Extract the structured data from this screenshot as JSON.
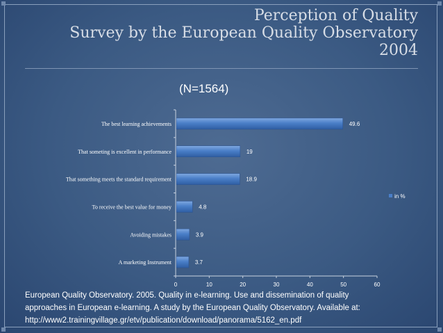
{
  "slide": {
    "title_lines": [
      "Perception of Quality",
      "Survey by the European Quality Observatory",
      "2004"
    ],
    "sample_size": "(N=1564)",
    "citation_lines": [
      "European Quality Observatory. 2005. Quality in e-learning. Use and dissemination of quality",
      "approaches in European e-learning. A study by the European Quality Observatory. Available at:",
      "http://www2.trainingvillage.gr/etv/publication/download/panorama/5162_en.pdf"
    ]
  },
  "chart_data": {
    "type": "bar",
    "orientation": "horizontal",
    "categories": [
      "The best learning achievements",
      "That someting is excellent in performance",
      "That something meets the standard requirement",
      "To receive the best value for money",
      "Avoiding mistakes",
      "A marketing Instrument"
    ],
    "series": [
      {
        "name": "in %",
        "values": [
          49.6,
          19,
          18.9,
          4.8,
          3.9,
          3.7
        ]
      }
    ],
    "value_labels": [
      "49.6",
      "19",
      "18.9",
      "4.8",
      "3.9",
      "3.7"
    ],
    "xticks": [
      "0",
      "10",
      "20",
      "30",
      "40",
      "50",
      "60"
    ],
    "xlim": [
      0,
      60
    ],
    "legend_position": "right",
    "colors": {
      "bar": "#4a7fc8",
      "bar_dark": "#2f5ea3",
      "text": "#ffffff"
    }
  }
}
